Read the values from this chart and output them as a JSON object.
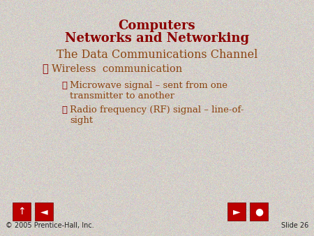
{
  "title_line1": "Computers",
  "title_line2": "Networks and Networking",
  "title_color": "#8B0000",
  "subtitle": "The Data Communications Channel",
  "subtitle_color": "#8B4513",
  "bullet1": "Wireless  communication",
  "bullet2_line1": "Microwave signal – sent from one",
  "bullet2_line2": "transmitter to another",
  "bullet3_line1": "Radio frequency (RF) signal – line-of-",
  "bullet3_line2": "sight",
  "bullet_color": "#8B4513",
  "check_color": "#8B0000",
  "bg_color": "#D4CFC9",
  "footer_left": "© 2005 Prentice-Hall, Inc.",
  "footer_right": "Slide 26",
  "footer_color": "#222222",
  "nav_button_color": "#BB0000"
}
